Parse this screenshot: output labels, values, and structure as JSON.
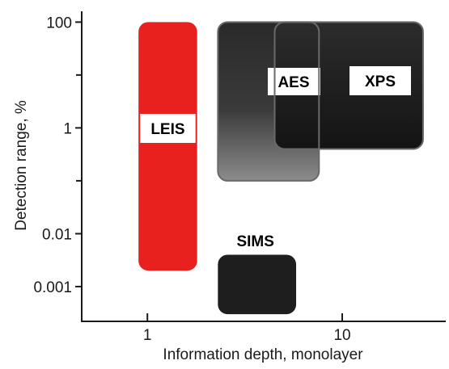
{
  "chart_data": {
    "type": "region",
    "xlabel": "Information depth, monolayer",
    "ylabel": "Detection range, %",
    "x_scale": "log",
    "y_scale": "log",
    "xlim": [
      0.46,
      34
    ],
    "ylim": [
      0.00022,
      160
    ],
    "x_ticks": [
      {
        "value": 1,
        "label": "1"
      },
      {
        "value": 10,
        "label": "10"
      }
    ],
    "y_ticks": [
      {
        "value": 100,
        "label": "100"
      },
      {
        "value": 1,
        "label": "1"
      },
      {
        "value": 0.01,
        "label": "0.01"
      },
      {
        "value": 0.001,
        "label": "0.001"
      }
    ],
    "grid": false,
    "series": [
      {
        "name": "LEIS",
        "x_range": [
          0.9,
          1.8
        ],
        "y_range": [
          0.002,
          100
        ],
        "color": "#e8201e"
      },
      {
        "name": "SIMS",
        "x_range": [
          2.3,
          5.8
        ],
        "y_range": [
          0.0003,
          0.004
        ],
        "color": "#1e1e1e"
      },
      {
        "name": "AES",
        "x_range": [
          2.3,
          7.6
        ],
        "y_range": [
          0.1,
          100
        ],
        "color": "#2a2a2a"
      },
      {
        "name": "XPS",
        "x_range": [
          4.5,
          26
        ],
        "y_range": [
          0.4,
          100
        ],
        "color": "#222222"
      }
    ]
  }
}
